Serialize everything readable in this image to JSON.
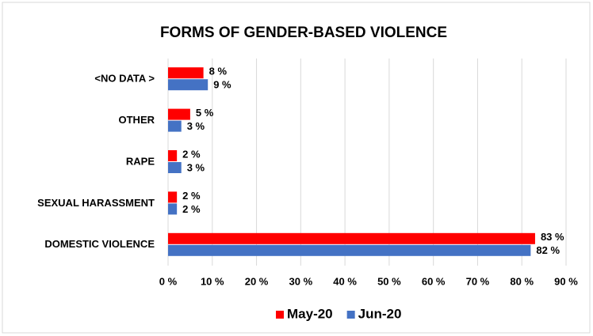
{
  "chart_data": {
    "type": "bar",
    "orientation": "horizontal",
    "title": "FORMS OF GENDER-BASED VIOLENCE",
    "categories": [
      "<NO DATA >",
      "OTHER",
      "RAPE",
      "SEXUAL HARASSMENT",
      "DOMESTIC VIOLENCE"
    ],
    "series": [
      {
        "name": "May-20",
        "color": "#ff0000",
        "values": [
          8,
          5,
          2,
          2,
          83
        ],
        "value_labels": [
          "8 %",
          "5 %",
          "2 %",
          "2 %",
          "83 %"
        ]
      },
      {
        "name": "Jun-20",
        "color": "#4472c4",
        "values": [
          9,
          3,
          3,
          2,
          82
        ],
        "value_labels": [
          "9 %",
          "3 %",
          "3 %",
          "2 %",
          "82 %"
        ]
      }
    ],
    "xlim": [
      0,
      90
    ],
    "xticks": [
      {
        "value": 0,
        "label": "0 %"
      },
      {
        "value": 10,
        "label": "10 %"
      },
      {
        "value": 20,
        "label": "20 %"
      },
      {
        "value": 30,
        "label": "30 %"
      },
      {
        "value": 40,
        "label": "40 %"
      },
      {
        "value": 50,
        "label": "50 %"
      },
      {
        "value": 60,
        "label": "60 %"
      },
      {
        "value": 70,
        "label": "70 %"
      },
      {
        "value": 80,
        "label": "80 %"
      },
      {
        "value": 90,
        "label": "90 %"
      }
    ],
    "grid": true,
    "legend": "bottom"
  }
}
